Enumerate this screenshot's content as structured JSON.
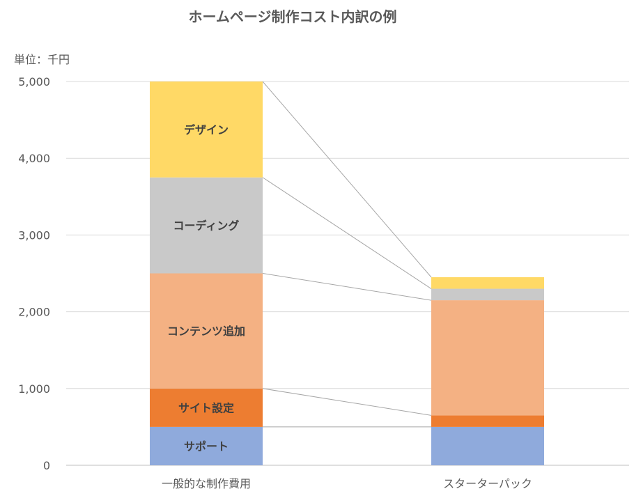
{
  "chart_data": {
    "type": "bar",
    "stacked": true,
    "title": "ホームページ制作コスト内訳の例",
    "unit_label": "単位：千円",
    "categories": [
      "一般的な制作費用",
      "スターターパック"
    ],
    "ylim": [
      0,
      5000
    ],
    "yticks": [
      0,
      1000,
      2000,
      3000,
      4000,
      5000
    ],
    "ytick_labels": [
      "0",
      "1,000",
      "2,000",
      "3,000",
      "4,000",
      "5,000"
    ],
    "grid": true,
    "legend": "none",
    "series": [
      {
        "name": "サポート",
        "values": [
          500,
          500
        ],
        "color": "#8faadc"
      },
      {
        "name": "サイト設定",
        "values": [
          500,
          150
        ],
        "color": "#ed7d31"
      },
      {
        "name": "コンテンツ追加",
        "values": [
          1500,
          1500
        ],
        "color": "#f4b183"
      },
      {
        "name": "コーディング",
        "values": [
          1250,
          150
        ],
        "color": "#c9c9c9"
      },
      {
        "name": "デザイン",
        "values": [
          1250,
          150
        ],
        "color": "#ffd966"
      }
    ],
    "label_category_index": 0
  }
}
